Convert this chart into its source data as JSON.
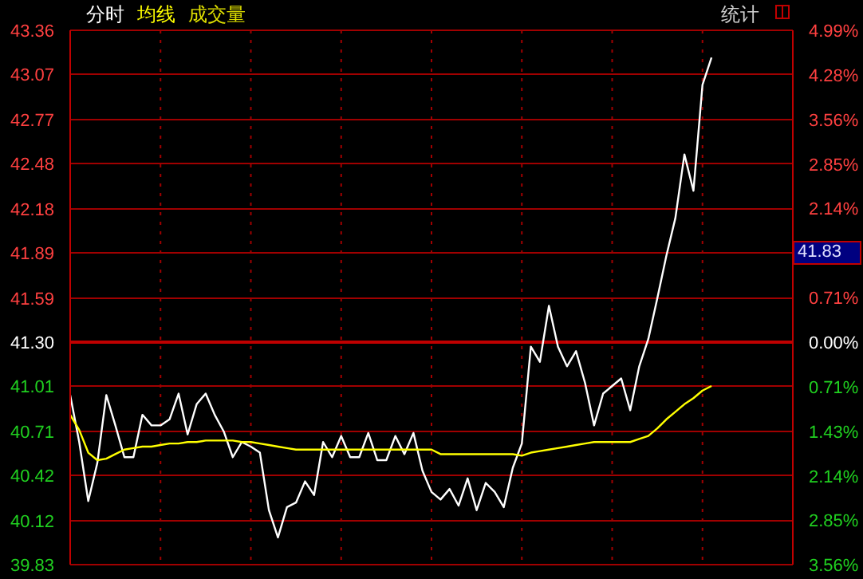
{
  "chart_data": {
    "type": "line",
    "categories": [
      null,
      null,
      null,
      null,
      null,
      null,
      null,
      null,
      null,
      null,
      null,
      null,
      null,
      null,
      null,
      null,
      null,
      null,
      null,
      null,
      null,
      null,
      null,
      null,
      null,
      null,
      null,
      null,
      null,
      null,
      null,
      null,
      null,
      null,
      null,
      null,
      null,
      null,
      null,
      null,
      null,
      null,
      null,
      null,
      null,
      null,
      null,
      null,
      null,
      null,
      null,
      null,
      null,
      null,
      null,
      null,
      null,
      null,
      null,
      null,
      null,
      null,
      null,
      null,
      null,
      null,
      null,
      null,
      null,
      null,
      null,
      null,
      null,
      null,
      null,
      null,
      null,
      null,
      null,
      null,
      null
    ],
    "series": [
      {
        "name": "分时",
        "color": "#ffffff",
        "values": [
          40.95,
          40.64,
          40.25,
          40.5,
          40.95,
          40.75,
          40.54,
          40.54,
          40.82,
          40.75,
          40.75,
          40.79,
          40.96,
          40.69,
          40.89,
          40.96,
          40.82,
          40.71,
          40.54,
          40.64,
          40.61,
          40.57,
          40.19,
          40.01,
          40.21,
          40.24,
          40.38,
          40.29,
          40.64,
          40.54,
          40.68,
          40.54,
          40.54,
          40.7,
          40.52,
          40.52,
          40.68,
          40.56,
          40.7,
          40.45,
          40.31,
          40.26,
          40.33,
          40.22,
          40.4,
          40.19,
          40.37,
          40.31,
          40.21,
          40.47,
          40.63,
          41.27,
          41.17,
          41.54,
          41.27,
          41.14,
          41.24,
          41.03,
          40.75,
          40.96,
          41.01,
          41.06,
          40.85,
          41.14,
          41.32,
          41.59,
          41.87,
          42.12,
          42.54,
          42.3,
          43.0,
          43.18,
          null,
          null,
          null,
          null,
          null,
          null,
          null,
          null,
          null
        ]
      },
      {
        "name": "均线",
        "color": "#ffff00",
        "values": [
          40.82,
          40.72,
          40.57,
          40.52,
          40.53,
          40.56,
          40.59,
          40.6,
          40.61,
          40.61,
          40.62,
          40.63,
          40.63,
          40.64,
          40.64,
          40.65,
          40.65,
          40.65,
          40.65,
          40.64,
          40.64,
          40.63,
          40.62,
          40.61,
          40.6,
          40.59,
          40.59,
          40.59,
          40.59,
          40.59,
          40.59,
          40.59,
          40.59,
          40.59,
          40.59,
          40.59,
          40.59,
          40.59,
          40.59,
          40.59,
          40.59,
          40.56,
          40.56,
          40.56,
          40.56,
          40.56,
          40.56,
          40.56,
          40.56,
          40.56,
          40.55,
          40.57,
          40.58,
          40.59,
          40.6,
          40.61,
          40.62,
          40.63,
          40.64,
          40.64,
          40.64,
          40.64,
          40.64,
          40.66,
          40.68,
          40.73,
          40.79,
          40.84,
          40.89,
          40.93,
          40.98,
          41.01,
          null,
          null,
          null,
          null,
          null,
          null,
          null,
          null,
          null
        ]
      }
    ],
    "ylim": [
      39.83,
      43.36
    ],
    "yticks": [
      43.36,
      43.07,
      42.77,
      42.48,
      42.18,
      41.89,
      41.59,
      {
        "value": 41.3,
        "label": "41.30"
      },
      41.01,
      40.71,
      40.42,
      40.12,
      39.83
    ],
    "y2lim": [
      -3.56,
      4.99
    ],
    "y2ticks": [
      {
        "value": 4.99,
        "label": "4.99%"
      },
      {
        "value": 4.28,
        "label": "4.28%"
      },
      {
        "value": 3.56,
        "label": "3.56%"
      },
      {
        "value": 2.85,
        "label": "2.85%"
      },
      {
        "value": 2.14,
        "label": "2.14%"
      },
      {
        "value": 0.71,
        "label": "0.71%"
      },
      {
        "value": 0,
        "label": "0.00%"
      },
      {
        "value": -0.71,
        "label": "0.71%"
      },
      {
        "value": -1.43,
        "label": "1.43%"
      },
      {
        "value": -2.14,
        "label": "2.14%"
      },
      {
        "value": -2.85,
        "label": "2.85%"
      },
      {
        "value": -3.56,
        "label": "3.56%"
      }
    ],
    "ref_lines": [
      {
        "axis": "y",
        "value": 41.3,
        "color": "#c00000"
      }
    ],
    "annotations": [
      "成交量",
      "统计",
      "41.83"
    ],
    "grid": true,
    "legend": "top left",
    "marker": "none",
    "line_style": "solid"
  }
}
